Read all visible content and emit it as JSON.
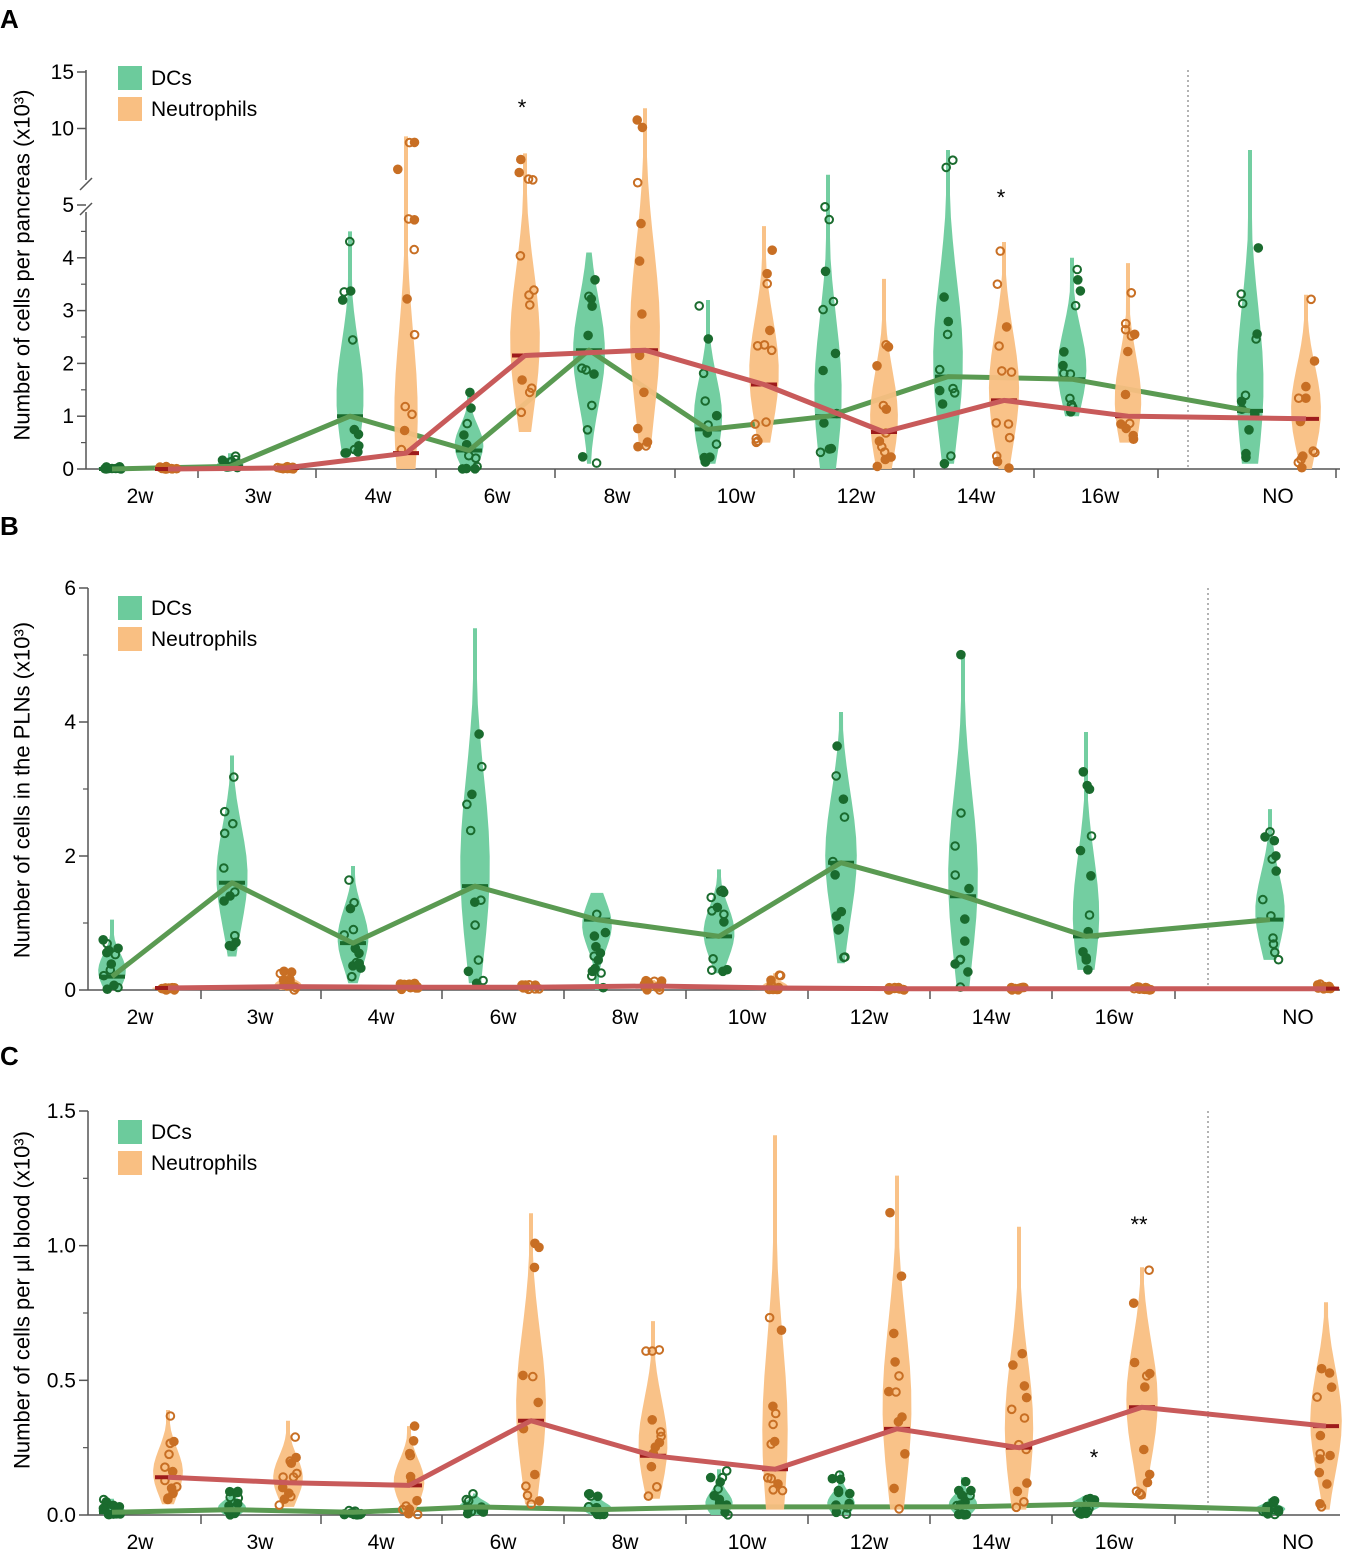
{
  "colors": {
    "dcs_fill": "#6ccb9c",
    "dcs_dot": "#1a6b2e",
    "dcs_line": "#5a9a52",
    "neutro_fill": "#f9bf82",
    "neutro_dot": "#c86f24",
    "neutro_line": "#c85a5a",
    "median_dc": "#1a6b2e",
    "median_neutro": "#9e1b1b",
    "separator": "#9a9a9a"
  },
  "chart_data": [
    {
      "panel": "A",
      "type": "violin",
      "ylabel": "Number of cells per pancreas (x10³)",
      "yaxis_broken": true,
      "ylim_lower": [
        0,
        5
      ],
      "ylim_upper": [
        5,
        15
      ],
      "yticks": [
        "0",
        "1",
        "2",
        "3",
        "4",
        "5",
        "10",
        "15"
      ],
      "categories": [
        "2w",
        "3w",
        "4w",
        "6w",
        "8w",
        "10w",
        "12w",
        "14w",
        "16w",
        "NO"
      ],
      "legend": [
        "DCs",
        "Neutrophils"
      ],
      "legend_position": "top-left",
      "series": [
        {
          "name": "DCs",
          "medians": [
            0.0,
            0.05,
            1.0,
            0.35,
            2.25,
            0.75,
            1.0,
            1.75,
            1.7,
            1.1
          ],
          "ranges": [
            [
              0,
              0.05
            ],
            [
              0,
              0.3
            ],
            [
              0.3,
              4.5
            ],
            [
              0,
              1.5
            ],
            [
              0.1,
              4.1
            ],
            [
              0.1,
              3.2
            ],
            [
              0,
              5.9
            ],
            [
              0.1,
              8.1
            ],
            [
              1.0,
              4.0
            ],
            [
              0.1,
              8.1
            ]
          ]
        },
        {
          "name": "Neutrophils",
          "medians": [
            0.0,
            0.02,
            0.3,
            2.15,
            2.25,
            1.6,
            0.7,
            1.3,
            1.0,
            0.95
          ],
          "ranges": [
            [
              0,
              0.05
            ],
            [
              0,
              0.05
            ],
            [
              0,
              9.3
            ],
            [
              0.7,
              7.8
            ],
            [
              0.4,
              11.8
            ],
            [
              0.5,
              4.6
            ],
            [
              0,
              3.6
            ],
            [
              0,
              4.3
            ],
            [
              0.5,
              3.9
            ],
            [
              0,
              3.3
            ]
          ]
        }
      ],
      "annotations": [
        {
          "text": "*",
          "category": "6w"
        },
        {
          "text": "*",
          "category": "14w"
        }
      ]
    },
    {
      "panel": "B",
      "type": "violin",
      "ylabel": "Number of cells in the PLNs (x10³)",
      "ylim": [
        0,
        6
      ],
      "yticks": [
        "0",
        "2",
        "4",
        "6"
      ],
      "categories": [
        "2w",
        "3w",
        "4w",
        "6w",
        "8w",
        "10w",
        "12w",
        "14w",
        "16w",
        "NO"
      ],
      "legend": [
        "DCs",
        "Neutrophils"
      ],
      "legend_position": "top-left",
      "series": [
        {
          "name": "DCs",
          "medians": [
            0.2,
            1.6,
            0.7,
            1.55,
            1.05,
            0.8,
            1.9,
            1.4,
            0.8,
            1.05
          ],
          "ranges": [
            [
              0,
              1.05
            ],
            [
              0.5,
              3.5
            ],
            [
              0.1,
              1.85
            ],
            [
              0.1,
              5.4
            ],
            [
              0,
              1.45
            ],
            [
              0.25,
              1.8
            ],
            [
              0.4,
              4.15
            ],
            [
              0,
              5.05
            ],
            [
              0.3,
              3.85
            ],
            [
              0.45,
              2.7
            ]
          ]
        },
        {
          "name": "Neutrophils",
          "medians": [
            0.03,
            0.05,
            0.04,
            0.04,
            0.06,
            0.03,
            0.02,
            0.02,
            0.02,
            0.02
          ],
          "ranges": [
            [
              0,
              0.05
            ],
            [
              0,
              0.3
            ],
            [
              0,
              0.1
            ],
            [
              0,
              0.08
            ],
            [
              0,
              0.15
            ],
            [
              0,
              0.25
            ],
            [
              0,
              0.05
            ],
            [
              0,
              0.04
            ],
            [
              0,
              0.05
            ],
            [
              0,
              0.1
            ]
          ]
        }
      ],
      "annotations": []
    },
    {
      "panel": "C",
      "type": "violin",
      "ylabel": "Number of cells per µl blood (x10³)",
      "ylim": [
        0,
        1.5
      ],
      "yticks": [
        "0.0",
        "0.5",
        "1.0",
        "1.5"
      ],
      "categories": [
        "2w",
        "3w",
        "4w",
        "6w",
        "8w",
        "10w",
        "12w",
        "14w",
        "16w",
        "NO"
      ],
      "legend": [
        "DCs",
        "Neutrophils"
      ],
      "legend_position": "top-left",
      "series": [
        {
          "name": "DCs",
          "medians": [
            0.01,
            0.02,
            0.01,
            0.03,
            0.02,
            0.03,
            0.03,
            0.03,
            0.04,
            0.02
          ],
          "ranges": [
            [
              0,
              0.06
            ],
            [
              0,
              0.1
            ],
            [
              0,
              0.02
            ],
            [
              0,
              0.08
            ],
            [
              0,
              0.08
            ],
            [
              0,
              0.17
            ],
            [
              0,
              0.16
            ],
            [
              0,
              0.14
            ],
            [
              0,
              0.07
            ],
            [
              0,
              0.06
            ]
          ]
        },
        {
          "name": "Neutrophils",
          "medians": [
            0.14,
            0.12,
            0.11,
            0.35,
            0.22,
            0.17,
            0.32,
            0.25,
            0.4,
            0.33
          ],
          "ranges": [
            [
              0.04,
              0.39
            ],
            [
              0.03,
              0.35
            ],
            [
              0,
              0.33
            ],
            [
              0.04,
              1.12
            ],
            [
              0.06,
              0.72
            ],
            [
              0.02,
              1.41
            ],
            [
              0.02,
              1.26
            ],
            [
              0.02,
              1.07
            ],
            [
              0.06,
              0.92
            ],
            [
              0.02,
              0.79
            ]
          ]
        }
      ],
      "annotations": [
        {
          "text": "*",
          "category": "16w"
        },
        {
          "text": "**",
          "category": "16w"
        }
      ]
    }
  ]
}
